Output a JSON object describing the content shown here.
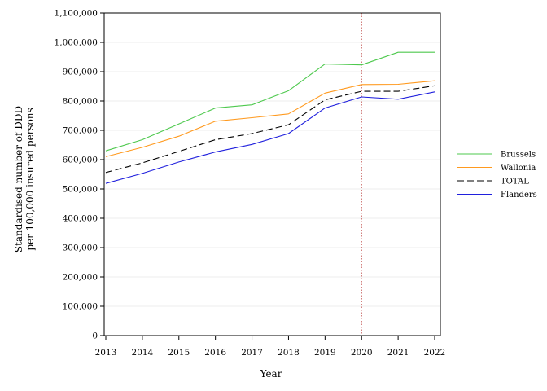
{
  "chart_data": {
    "type": "line",
    "title": "",
    "xlabel": "Year",
    "ylabel_lines": [
      "Standardised number of DDD",
      "per 100,000 insured persons"
    ],
    "x": [
      "2013",
      "2014",
      "2015",
      "2016",
      "2017",
      "2018",
      "2019",
      "2020",
      "2021",
      "2022"
    ],
    "ylim": [
      0,
      1100000
    ],
    "yticks": [
      0,
      100000,
      200000,
      300000,
      400000,
      500000,
      600000,
      700000,
      800000,
      900000,
      1000000,
      1100000
    ],
    "ytick_labels": [
      "0",
      "100,000",
      "200,000",
      "300,000",
      "400,000",
      "500,000",
      "600,000",
      "700,000",
      "800,000",
      "900,000",
      "1,000,000",
      "1,100,000"
    ],
    "grid": true,
    "legend_position": "right",
    "reference_line": {
      "x": "2020",
      "color": "#c0504d",
      "style": "dotted"
    },
    "series": [
      {
        "name": "Brussels",
        "color": "#4ec94e",
        "dash": "solid",
        "values": [
          630000,
          668000,
          722000,
          776000,
          787000,
          835000,
          926000,
          923000,
          966000,
          966000
        ]
      },
      {
        "name": "Wallonia",
        "color": "#ff9a1f",
        "dash": "solid",
        "values": [
          610000,
          642000,
          680000,
          731000,
          743000,
          756000,
          827000,
          856000,
          857000,
          869000
        ]
      },
      {
        "name": "TOTAL",
        "color": "#000000",
        "dash": "dashed",
        "values": [
          556000,
          589000,
          628000,
          668000,
          689000,
          719000,
          804000,
          833000,
          833000,
          852000
        ]
      },
      {
        "name": "Flanders",
        "color": "#2020dd",
        "dash": "solid",
        "values": [
          519000,
          553000,
          592000,
          626000,
          652000,
          689000,
          776000,
          814000,
          806000,
          831000
        ]
      }
    ]
  }
}
